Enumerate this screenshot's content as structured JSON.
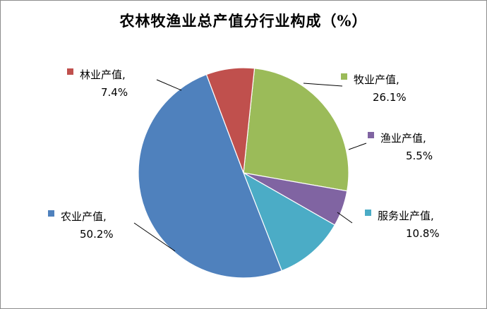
{
  "chart_data": {
    "type": "pie",
    "title": "农林牧渔业总产值分行业构成（%）",
    "slices": [
      {
        "name": "农业产值",
        "value": 50.2,
        "label_name": "农业产值,",
        "label_value": "50.2%",
        "color": "#4F81BD"
      },
      {
        "name": "林业产值",
        "value": 7.4,
        "label_name": "林业产值,",
        "label_value": "7.4%",
        "color": "#C0504D"
      },
      {
        "name": "牧业产值",
        "value": 26.1,
        "label_name": "牧业产值,",
        "label_value": "26.1%",
        "color": "#9BBB59"
      },
      {
        "name": "渔业产值",
        "value": 5.5,
        "label_name": "渔业产值,",
        "label_value": "5.5%",
        "color": "#8064A2"
      },
      {
        "name": "服务业产值",
        "value": 10.8,
        "label_name": "服务业产值,",
        "label_value": "10.8%",
        "color": "#4BACC6"
      }
    ],
    "legend": "none",
    "grid": false
  }
}
